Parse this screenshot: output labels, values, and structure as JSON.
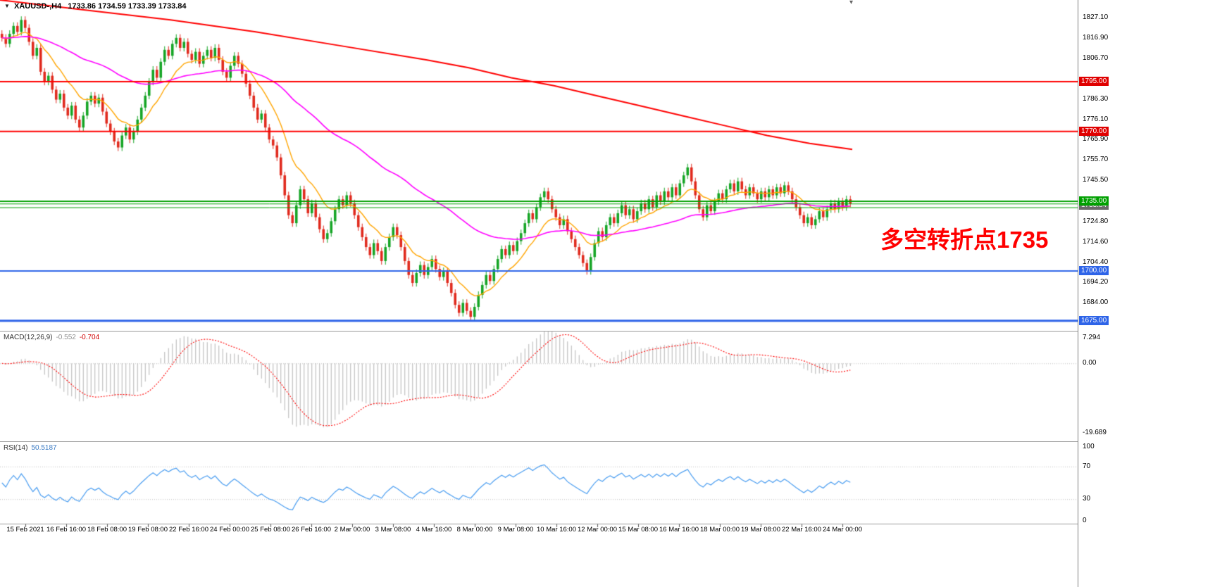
{
  "window": {
    "symbol_header": {
      "symbol": "XAUUSD-,H4",
      "ohlc_text": "1733.86 1734.59 1733.39 1733.84"
    }
  },
  "annotation": {
    "text": "多空转折点1735",
    "color": "#FF0000"
  },
  "indicators": {
    "macd": {
      "name": "MACD(12,26,9)",
      "main_value": "-0.552",
      "signal_value": "-0.704",
      "axis_labels": [
        {
          "text": "7.294",
          "value": 7.294
        },
        {
          "text": "0.00",
          "value": 0
        },
        {
          "text": "-19.689",
          "value": -19.689
        }
      ]
    },
    "rsi": {
      "name": "RSI(14)",
      "value": "50.5187",
      "axis_labels": [
        {
          "text": "100",
          "value": 100
        },
        {
          "text": "70",
          "value": 70
        },
        {
          "text": "30",
          "value": 30
        },
        {
          "text": "0",
          "value": 0
        }
      ]
    }
  },
  "chart_data": {
    "type": "candlestick",
    "symbol": "XAUUSD-",
    "timeframe": "H4",
    "last_ohlc": {
      "open": 1733.86,
      "high": 1734.59,
      "low": 1733.39,
      "close": 1733.84
    },
    "y_range": [
      1670,
      1836
    ],
    "plot_span_frac": 0.791,
    "wick": 1.8,
    "colors": {
      "up": "#16a526",
      "down": "#e02a1e",
      "ma_fast": "#ffa500",
      "ma_slow": "#ff00ff",
      "ma_long": "#ff0000",
      "macd_hist": "#b4b4b4",
      "macd_signal": "#ff0000",
      "rsi": "#4a9df0",
      "level": "#c0c0c0"
    },
    "closes": [
      1817,
      1814,
      1819,
      1823,
      1820,
      1826,
      1822,
      1815,
      1808,
      1812,
      1800,
      1795,
      1798,
      1791,
      1786,
      1789,
      1782,
      1778,
      1783,
      1776,
      1772,
      1778,
      1785,
      1788,
      1784,
      1787,
      1780,
      1774,
      1770,
      1765,
      1762,
      1768,
      1772,
      1766,
      1770,
      1776,
      1782,
      1788,
      1795,
      1801,
      1797,
      1805,
      1811,
      1808,
      1814,
      1817,
      1812,
      1815,
      1809,
      1806,
      1810,
      1804,
      1808,
      1811,
      1807,
      1812,
      1806,
      1800,
      1797,
      1803,
      1808,
      1804,
      1799,
      1794,
      1788,
      1782,
      1776,
      1779,
      1772,
      1766,
      1763,
      1757,
      1748,
      1738,
      1728,
      1724,
      1733,
      1741,
      1736,
      1729,
      1734,
      1727,
      1721,
      1716,
      1719,
      1725,
      1731,
      1736,
      1733,
      1738,
      1734,
      1728,
      1722,
      1717,
      1712,
      1708,
      1714,
      1710,
      1705,
      1712,
      1717,
      1722,
      1718,
      1712,
      1705,
      1698,
      1694,
      1699,
      1703,
      1698,
      1702,
      1706,
      1701,
      1697,
      1700,
      1694,
      1689,
      1683,
      1679,
      1684,
      1680,
      1677,
      1682,
      1688,
      1693,
      1698,
      1695,
      1701,
      1706,
      1711,
      1708,
      1713,
      1710,
      1715,
      1719,
      1724,
      1729,
      1726,
      1732,
      1737,
      1740,
      1736,
      1731,
      1727,
      1723,
      1726,
      1720,
      1716,
      1712,
      1708,
      1704,
      1700,
      1707,
      1714,
      1720,
      1717,
      1723,
      1727,
      1724,
      1729,
      1733,
      1728,
      1731,
      1726,
      1730,
      1734,
      1731,
      1736,
      1732,
      1738,
      1735,
      1740,
      1737,
      1742,
      1738,
      1744,
      1748,
      1752,
      1745,
      1738,
      1731,
      1727,
      1733,
      1730,
      1735,
      1739,
      1736,
      1741,
      1744,
      1740,
      1745,
      1741,
      1738,
      1742,
      1739,
      1736,
      1740,
      1737,
      1741,
      1738,
      1742,
      1739,
      1743,
      1740,
      1736,
      1732,
      1728,
      1724,
      1727,
      1723,
      1726,
      1730,
      1727,
      1731,
      1734,
      1731,
      1735,
      1732,
      1736,
      1733.84
    ],
    "ma_fast_period": 12,
    "ma_slow_period": 60,
    "ma_long_points": [
      [
        0,
        1836
      ],
      [
        0.1,
        1831
      ],
      [
        0.2,
        1826
      ],
      [
        0.3,
        1820
      ],
      [
        0.4,
        1813
      ],
      [
        0.5,
        1806
      ],
      [
        0.55,
        1802
      ],
      [
        0.6,
        1797
      ],
      [
        0.65,
        1793
      ],
      [
        0.7,
        1788
      ],
      [
        0.75,
        1783
      ],
      [
        0.8,
        1778
      ],
      [
        0.85,
        1773
      ],
      [
        0.9,
        1768
      ],
      [
        0.95,
        1764
      ],
      [
        1,
        1761
      ]
    ],
    "hlines": [
      {
        "price": 1795.0,
        "label": "1795.00",
        "color": "#ff0000",
        "width": 2,
        "badge": "#e00000"
      },
      {
        "price": 1770.0,
        "label": "1770.00",
        "color": "#ff0000",
        "width": 2,
        "badge": "#e00000"
      },
      {
        "price": 1735.0,
        "label": "1735.00",
        "color": "#00a000",
        "width": 2,
        "badge": "#00a000"
      },
      {
        "price": 1731.8,
        "label": null,
        "color": "#00a000",
        "width": 1
      },
      {
        "price": 1700.0,
        "label": "1700.00",
        "color": "#2e64e8",
        "width": 2,
        "badge": "#2e64e8"
      },
      {
        "price": 1675.0,
        "label": "1675.00",
        "color": "#2e64e8",
        "width": 3,
        "badge": "#2e64e8"
      }
    ],
    "current_price": {
      "value": 1733.84,
      "label": "1733.84",
      "line_color": "#00a000",
      "badge": "#6a6a6a"
    },
    "price_ticks": [
      1827.1,
      1816.9,
      1806.7,
      1786.3,
      1776.1,
      1765.9,
      1755.7,
      1745.5,
      1724.8,
      1714.6,
      1704.4,
      1694.2,
      1684.0
    ],
    "macd_params": {
      "fast": 12,
      "slow": 26,
      "signal": 9
    },
    "macd_range": [
      -22,
      9
    ],
    "rsi_period": 14,
    "rsi_range": [
      0,
      100
    ],
    "rsi_levels": [
      70,
      30
    ],
    "time_labels": [
      "15 Feb 2021",
      "16 Feb 16:00",
      "18 Feb 08:00",
      "19 Feb 08:00",
      "22 Feb 16:00",
      "24 Feb 00:00",
      "25 Feb 08:00",
      "26 Feb 16:00",
      "2 Mar 00:00",
      "3 Mar 08:00",
      "4 Mar 16:00",
      "8 Mar 00:00",
      "9 Mar 08:00",
      "10 Mar 16:00",
      "12 Mar 00:00",
      "15 Mar 08:00",
      "16 Mar 16:00",
      "18 Mar 00:00",
      "19 Mar 08:00",
      "22 Mar 16:00",
      "24 Mar 00:00"
    ]
  }
}
